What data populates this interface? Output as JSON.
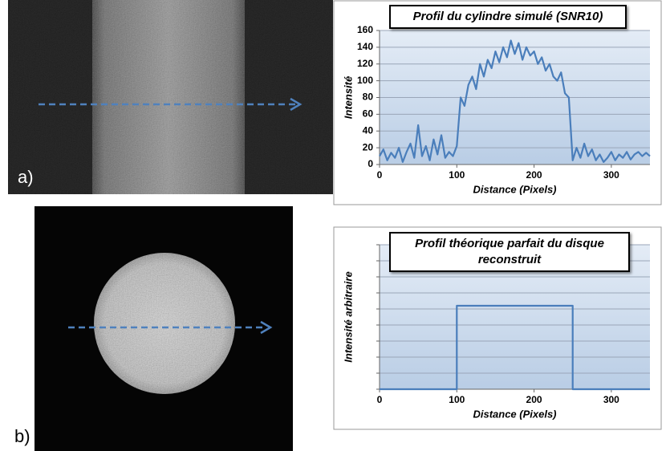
{
  "image_labels": [
    "a)",
    "b)"
  ],
  "chart_data": [
    {
      "type": "line",
      "title": "Profil du cylindre simulé (SNR10)",
      "x_label": "Distance (Pixels)",
      "y_label": "Intensité",
      "x": [
        0,
        5,
        10,
        15,
        20,
        25,
        30,
        35,
        40,
        45,
        50,
        55,
        60,
        65,
        70,
        75,
        80,
        85,
        90,
        95,
        100,
        105,
        110,
        115,
        120,
        125,
        130,
        135,
        140,
        145,
        150,
        155,
        160,
        165,
        170,
        175,
        180,
        185,
        190,
        195,
        200,
        205,
        210,
        215,
        220,
        225,
        230,
        235,
        240,
        245,
        250,
        255,
        260,
        265,
        270,
        275,
        280,
        285,
        290,
        295,
        300,
        305,
        310,
        315,
        320,
        325,
        330,
        335,
        340,
        345,
        350
      ],
      "series": [
        {
          "color": "#4a7ebb",
          "values": [
            10,
            18,
            5,
            14,
            8,
            20,
            3,
            15,
            25,
            8,
            47,
            10,
            22,
            5,
            30,
            12,
            35,
            8,
            15,
            10,
            22,
            80,
            70,
            95,
            105,
            90,
            120,
            105,
            125,
            115,
            135,
            122,
            140,
            128,
            148,
            132,
            145,
            125,
            140,
            130,
            135,
            120,
            128,
            112,
            120,
            105,
            100,
            110,
            85,
            80,
            5,
            20,
            8,
            25,
            10,
            18,
            5,
            12,
            3,
            8,
            15,
            5,
            12,
            8,
            15,
            6,
            12,
            15,
            10,
            14,
            10
          ]
        }
      ],
      "xlim": [
        0,
        350
      ],
      "xticks": [
        0,
        100,
        200,
        300
      ],
      "ylim": [
        0,
        160
      ],
      "yticks": [
        0,
        20,
        40,
        60,
        80,
        100,
        120,
        140,
        160
      ],
      "ytick_labels": true,
      "grid": true
    },
    {
      "type": "line",
      "title": "Profil théorique parfait du disque reconstruit",
      "x_label": "Distance (Pixels)",
      "y_label": "Intensité arbitraire",
      "x": [
        0,
        100,
        100,
        250,
        250,
        350
      ],
      "series": [
        {
          "color": "#4a7ebb",
          "values": [
            0,
            0,
            5.2,
            5.2,
            0,
            0
          ]
        }
      ],
      "xlim": [
        0,
        350
      ],
      "xticks": [
        0,
        100,
        200,
        300
      ],
      "ylim": [
        0,
        9
      ],
      "yticks": [
        0,
        1,
        2,
        3,
        4,
        5,
        6,
        7,
        8,
        9
      ],
      "ytick_labels": false,
      "grid": true
    }
  ]
}
